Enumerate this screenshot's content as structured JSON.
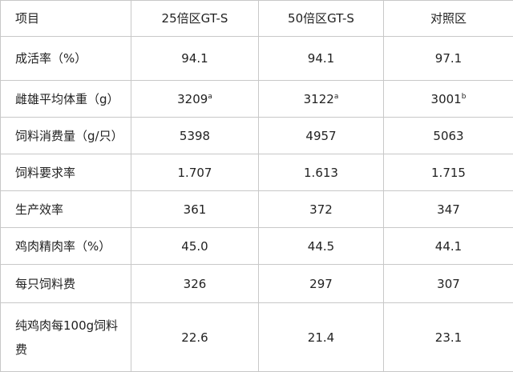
{
  "table": {
    "header": [
      "项目",
      "25倍区GT-S",
      "50倍区GT-S",
      "对照区"
    ],
    "rows": [
      [
        {
          "text": "成活率（%）"
        },
        {
          "text": "94.1"
        },
        {
          "text": "94.1"
        },
        {
          "text": "97.1"
        }
      ],
      [
        {
          "text": "雌雄平均体重（g）"
        },
        {
          "text": "3209",
          "sup": "a"
        },
        {
          "text": "3122",
          "sup": "a"
        },
        {
          "text": "3001",
          "sup": "b"
        }
      ],
      [
        {
          "text": "饲料消费量（g/只）"
        },
        {
          "text": "5398"
        },
        {
          "text": "4957"
        },
        {
          "text": "5063"
        }
      ],
      [
        {
          "text": "饲料要求率"
        },
        {
          "text": "1.707"
        },
        {
          "text": "1.613"
        },
        {
          "text": "1.715"
        }
      ],
      [
        {
          "text": "生产效率"
        },
        {
          "text": "361"
        },
        {
          "text": "372"
        },
        {
          "text": "347"
        }
      ],
      [
        {
          "text": "鸡肉精肉率（%）"
        },
        {
          "text": "45.0"
        },
        {
          "text": "44.5"
        },
        {
          "text": "44.1"
        }
      ],
      [
        {
          "text": "每只饲料费"
        },
        {
          "text": "326"
        },
        {
          "text": "297"
        },
        {
          "text": "307"
        }
      ],
      [
        {
          "text": "纯鸡肉每100g饲料费"
        },
        {
          "text": "22.6"
        },
        {
          "text": "21.4"
        },
        {
          "text": "23.1"
        }
      ]
    ]
  }
}
